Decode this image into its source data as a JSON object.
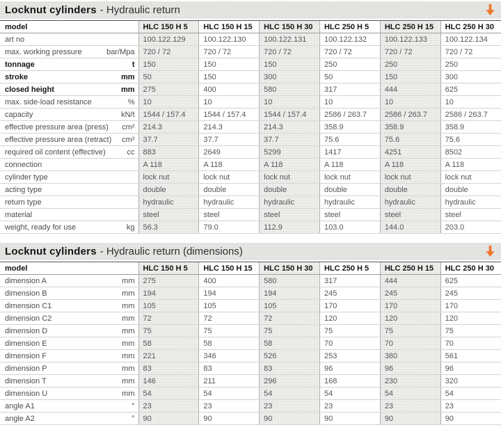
{
  "page": {
    "accent_color": "#f0762b",
    "header_label": "model",
    "column_headers": [
      "HLC 150 H 5",
      "HLC 150 H 15",
      "HLC 150 H 30",
      "HLC 250 H 5",
      "HLC 250 H 15",
      "HLC 250 H 30"
    ]
  },
  "tables": [
    {
      "title_bold": "Locknut cylinders",
      "title_rest": "- Hydraulic return",
      "rows": [
        {
          "label": "art no",
          "unit": "",
          "bold": false,
          "values": [
            "100.122.129",
            "100.122.130",
            "100.122.131",
            "100.122.132",
            "100.122.133",
            "100.122.134"
          ]
        },
        {
          "label": "max. working pressure",
          "unit": "bar/Mpa",
          "bold": false,
          "values": [
            "720 / 72",
            "720 / 72",
            "720 / 72",
            "720 / 72",
            "720 / 72",
            "720 / 72"
          ]
        },
        {
          "label": "tonnage",
          "unit": "t",
          "bold": true,
          "values": [
            "150",
            "150",
            "150",
            "250",
            "250",
            "250"
          ]
        },
        {
          "label": "stroke",
          "unit": "mm",
          "bold": true,
          "values": [
            "50",
            "150",
            "300",
            "50",
            "150",
            "300"
          ]
        },
        {
          "label": "closed height",
          "unit": "mm",
          "bold": true,
          "values": [
            "275",
            "400",
            "580",
            "317",
            "444",
            "625"
          ]
        },
        {
          "label": "max. side-load resistance",
          "unit": "%",
          "bold": false,
          "values": [
            "10",
            "10",
            "10",
            "10",
            "10",
            "10"
          ]
        },
        {
          "label": "capacity",
          "unit": "kN/t",
          "bold": false,
          "values": [
            "1544 / 157.4",
            "1544 / 157.4",
            "1544 / 157.4",
            "2586 / 263.7",
            "2586 / 263.7",
            "2586 / 263.7"
          ]
        },
        {
          "label": "effective pressure area (press)",
          "unit": "cm²",
          "bold": false,
          "values": [
            "214.3",
            "214.3",
            "214.3",
            "358.9",
            "358.9",
            "358.9"
          ]
        },
        {
          "label": "effective pressure area (retract)",
          "unit": "cm²",
          "bold": false,
          "values": [
            "37.7",
            "37.7",
            "37.7",
            "75.6",
            "75.6",
            "75.6"
          ]
        },
        {
          "label": "required oil content (effective)",
          "unit": "cc",
          "bold": false,
          "values": [
            "883",
            "2649",
            "5299",
            "1417",
            "4251",
            "8502"
          ]
        },
        {
          "label": "connection",
          "unit": "",
          "bold": false,
          "values": [
            "A 118",
            "A 118",
            "A 118",
            "A 118",
            "A 118",
            "A 118"
          ]
        },
        {
          "label": "cylinder type",
          "unit": "",
          "bold": false,
          "values": [
            "lock nut",
            "lock nut",
            "lock nut",
            "lock nut",
            "lock nut",
            "lock nut"
          ]
        },
        {
          "label": "acting type",
          "unit": "",
          "bold": false,
          "values": [
            "double",
            "double",
            "double",
            "double",
            "double",
            "double"
          ]
        },
        {
          "label": "return type",
          "unit": "",
          "bold": false,
          "values": [
            "hydraulic",
            "hydraulic",
            "hydraulic",
            "hydraulic",
            "hydraulic",
            "hydraulic"
          ]
        },
        {
          "label": "material",
          "unit": "",
          "bold": false,
          "values": [
            "steel",
            "steel",
            "steel",
            "steel",
            "steel",
            "steel"
          ]
        },
        {
          "label": "weight, ready for use",
          "unit": "kg",
          "bold": false,
          "values": [
            "56.3",
            "79.0",
            "112.9",
            "103.0",
            "144.0",
            "203.0"
          ]
        }
      ]
    },
    {
      "title_bold": "Locknut cylinders",
      "title_rest": "- Hydraulic return (dimensions)",
      "rows": [
        {
          "label": "dimension A",
          "unit": "mm",
          "bold": false,
          "values": [
            "275",
            "400",
            "580",
            "317",
            "444",
            "625"
          ]
        },
        {
          "label": "dimension B",
          "unit": "mm",
          "bold": false,
          "values": [
            "194",
            "194",
            "194",
            "245",
            "245",
            "245"
          ]
        },
        {
          "label": "dimension C1",
          "unit": "mm",
          "bold": false,
          "values": [
            "105",
            "105",
            "105",
            "170",
            "170",
            "170"
          ]
        },
        {
          "label": "dimension C2",
          "unit": "mm",
          "bold": false,
          "values": [
            "72",
            "72",
            "72",
            "120",
            "120",
            "120"
          ]
        },
        {
          "label": "dimension D",
          "unit": "mm",
          "bold": false,
          "values": [
            "75",
            "75",
            "75",
            "75",
            "75",
            "75"
          ]
        },
        {
          "label": "dimension E",
          "unit": "mm",
          "bold": false,
          "values": [
            "58",
            "58",
            "58",
            "70",
            "70",
            "70"
          ]
        },
        {
          "label": "dimension F",
          "unit": "mm",
          "bold": false,
          "values": [
            "221",
            "346",
            "526",
            "253",
            "380",
            "561"
          ]
        },
        {
          "label": "dimension P",
          "unit": "mm",
          "bold": false,
          "values": [
            "83",
            "83",
            "83",
            "96",
            "96",
            "96"
          ]
        },
        {
          "label": "dimension T",
          "unit": "mm",
          "bold": false,
          "values": [
            "146",
            "211",
            "296",
            "168",
            "230",
            "320"
          ]
        },
        {
          "label": "dimension U",
          "unit": "mm",
          "bold": false,
          "values": [
            "54",
            "54",
            "54",
            "54",
            "54",
            "54"
          ]
        },
        {
          "label": "angle A1",
          "unit": "°",
          "bold": false,
          "values": [
            "23",
            "23",
            "23",
            "23",
            "23",
            "23"
          ]
        },
        {
          "label": "angle A2",
          "unit": "°",
          "bold": false,
          "values": [
            "90",
            "90",
            "90",
            "90",
            "90",
            "90"
          ]
        }
      ]
    }
  ]
}
